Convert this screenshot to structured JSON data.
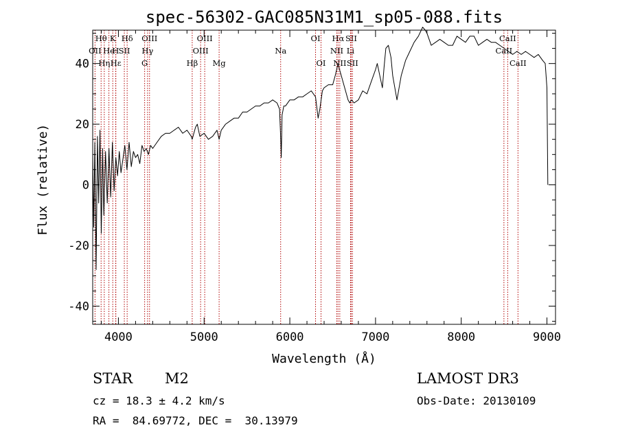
{
  "chart_data": {
    "type": "line",
    "title": "spec-56302-GAC085N31M1_sp05-088.fits",
    "xlabel": "Wavelength (Å)",
    "ylabel": "Flux (relative)",
    "xlim": [
      3700,
      9100
    ],
    "ylim": [
      -46,
      51
    ],
    "x_ticks": [
      4000,
      5000,
      6000,
      7000,
      8000,
      9000
    ],
    "y_ticks": [
      -40,
      -20,
      0,
      20,
      40
    ],
    "series": [
      {
        "name": "flux",
        "x": [
          3700,
          3712,
          3725,
          3740,
          3755,
          3770,
          3785,
          3800,
          3815,
          3830,
          3850,
          3870,
          3890,
          3910,
          3930,
          3950,
          3970,
          3990,
          4010,
          4030,
          4050,
          4075,
          4100,
          4125,
          4150,
          4175,
          4200,
          4225,
          4250,
          4275,
          4300,
          4325,
          4350,
          4375,
          4400,
          4450,
          4500,
          4550,
          4600,
          4650,
          4700,
          4750,
          4800,
          4850,
          4861,
          4880,
          4900,
          4920,
          4950,
          5000,
          5050,
          5100,
          5150,
          5175,
          5200,
          5250,
          5300,
          5350,
          5400,
          5450,
          5500,
          5550,
          5600,
          5650,
          5700,
          5750,
          5800,
          5850,
          5880,
          5895,
          5900,
          5910,
          5930,
          5950,
          6000,
          6050,
          6100,
          6150,
          6200,
          6250,
          6300,
          6330,
          6350,
          6380,
          6400,
          6450,
          6500,
          6530,
          6563,
          6580,
          6600,
          6620,
          6650,
          6680,
          6700,
          6720,
          6750,
          6800,
          6850,
          6900,
          6950,
          7000,
          7020,
          7050,
          7080,
          7100,
          7120,
          7150,
          7180,
          7200,
          7250,
          7300,
          7350,
          7400,
          7450,
          7500,
          7550,
          7580,
          7600,
          7650,
          7700,
          7750,
          7800,
          7850,
          7900,
          7950,
          8000,
          8050,
          8100,
          8150,
          8200,
          8250,
          8300,
          8350,
          8400,
          8450,
          8500,
          8550,
          8600,
          8650,
          8700,
          8750,
          8800,
          8850,
          8900,
          8950,
          8980,
          9000,
          9010
        ],
        "values": [
          10,
          -14,
          14,
          -28,
          16,
          -6,
          18,
          -16,
          12,
          -10,
          11,
          -6,
          12,
          -4,
          14,
          -2,
          9,
          3,
          11,
          4,
          8,
          13,
          5,
          14,
          6,
          11,
          9,
          10,
          7,
          13,
          11,
          12,
          10,
          13,
          12,
          14,
          16,
          17,
          17,
          18,
          19,
          17,
          18,
          16,
          15,
          17,
          19,
          20,
          16,
          17,
          15,
          16,
          18,
          15,
          18,
          20,
          21,
          22,
          22,
          24,
          24,
          25,
          26,
          26,
          27,
          27,
          28,
          27,
          25,
          14,
          9,
          23,
          26,
          26,
          28,
          28,
          29,
          29,
          30,
          31,
          29,
          22,
          25,
          31,
          32,
          33,
          33,
          36,
          40,
          38,
          36,
          34,
          31,
          28,
          27,
          28,
          27,
          28,
          31,
          30,
          34,
          38,
          40,
          36,
          32,
          39,
          45,
          46,
          42,
          36,
          28,
          36,
          41,
          44,
          47,
          49,
          52,
          51,
          50,
          46,
          47,
          48,
          47,
          46,
          46,
          49,
          48,
          47,
          49,
          49,
          46,
          47,
          48,
          47,
          47,
          46,
          45,
          44,
          43,
          44,
          43,
          44,
          43,
          42,
          43,
          41,
          40,
          32,
          0
        ]
      }
    ],
    "spectral_lines": [
      {
        "label": "Hθ",
        "x": 3798,
        "row": 0
      },
      {
        "label": "K",
        "x": 3934,
        "row": 0
      },
      {
        "label": "Hδ",
        "x": 4102,
        "row": 0
      },
      {
        "label": "OIII",
        "x": 4363,
        "row": 0
      },
      {
        "label": "OIII",
        "x": 5007,
        "row": 0
      },
      {
        "label": "OI",
        "x": 6300,
        "row": 0
      },
      {
        "label": "Hα",
        "x": 6563,
        "row": 0
      },
      {
        "label": "SII",
        "x": 6716,
        "row": 0
      },
      {
        "label": "CaII",
        "x": 8542,
        "row": 0
      },
      {
        "label": "OII",
        "x": 3727,
        "row": 1
      },
      {
        "label": "He",
        "x": 3889,
        "row": 1
      },
      {
        "label": "H",
        "x": 3968,
        "row": 1
      },
      {
        "label": "SII",
        "x": 4069,
        "row": 1
      },
      {
        "label": "Hγ",
        "x": 4340,
        "row": 1
      },
      {
        "label": "OIII",
        "x": 4959,
        "row": 1
      },
      {
        "label": "Na",
        "x": 5893,
        "row": 1
      },
      {
        "label": "NII",
        "x": 6548,
        "row": 1
      },
      {
        "label": "Li",
        "x": 6708,
        "row": 1
      },
      {
        "label": "CaII",
        "x": 8498,
        "row": 1
      },
      {
        "label": "Hη",
        "x": 3835,
        "row": 2
      },
      {
        "label": "Hε",
        "x": 3970,
        "row": 2
      },
      {
        "label": "G",
        "x": 4306,
        "row": 2
      },
      {
        "label": "Hβ",
        "x": 4861,
        "row": 2
      },
      {
        "label": "Mg",
        "x": 5175,
        "row": 2
      },
      {
        "label": "OI",
        "x": 6364,
        "row": 2
      },
      {
        "label": "NII",
        "x": 6583,
        "row": 2
      },
      {
        "label": "SII",
        "x": 6731,
        "row": 2
      },
      {
        "label": "CaII",
        "x": 8662,
        "row": 2
      }
    ],
    "line_marker_color": "#b00000"
  },
  "info": {
    "object_class": "STAR",
    "subclass": "M2",
    "survey": "LAMOST DR3",
    "cz": "cz = 18.3 ± 4.2 km/s",
    "obs_date": "Obs-Date: 20130109",
    "coords": "RA =  84.69772, DEC =  30.13979"
  }
}
